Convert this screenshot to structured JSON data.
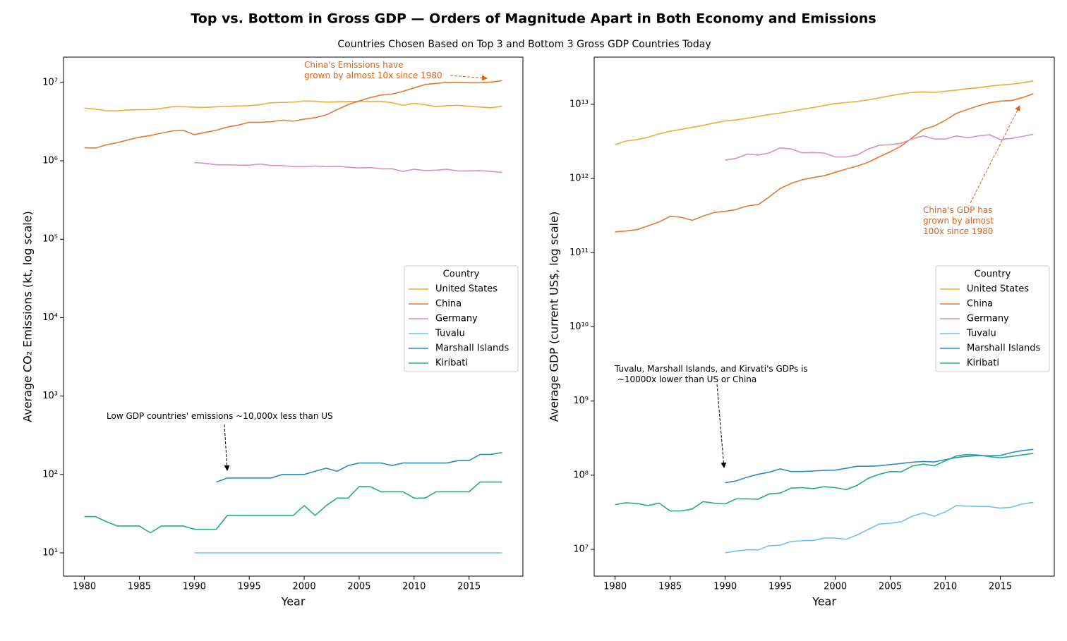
{
  "title": "Top vs. Bottom in Gross GDP — Orders of Magnitude Apart in Both Economy and Emissions",
  "subtitle": "Countries Chosen Based on Top 3 and Bottom 3 Gross GDP Countries Today",
  "chart_data": [
    {
      "type": "line",
      "xlabel": "Year",
      "ylabel": "Average CO₂ Emissions (kt, log scale)",
      "log_scale": true,
      "x": [
        1980,
        1981,
        1982,
        1983,
        1984,
        1985,
        1986,
        1987,
        1988,
        1989,
        1990,
        1991,
        1992,
        1993,
        1994,
        1995,
        1996,
        1997,
        1998,
        1999,
        2000,
        2001,
        2002,
        2003,
        2004,
        2005,
        2006,
        2007,
        2008,
        2009,
        2010,
        2011,
        2012,
        2013,
        2014,
        2015,
        2016,
        2017,
        2018
      ],
      "xlim": [
        1978.1,
        2019.9
      ],
      "xticks": [
        1980,
        1985,
        1990,
        1995,
        2000,
        2005,
        2010,
        2015
      ],
      "ylim": [
        5.05,
        21000000
      ],
      "yticks": [
        {
          "value": 10,
          "label": "10¹"
        },
        {
          "value": 100,
          "label": "10²"
        },
        {
          "value": 1000,
          "label": "10³"
        },
        {
          "value": 10000,
          "label": "10⁴"
        },
        {
          "value": 100000,
          "label": "10⁵"
        },
        {
          "value": 1000000,
          "label": "10⁶"
        },
        {
          "value": 10000000,
          "label": "10⁷"
        }
      ],
      "legend": {
        "title": "Country",
        "loc": "center right"
      },
      "series": [
        {
          "name": "United States",
          "color": "#ebac3d",
          "values": [
            4700000,
            4550000,
            4330000,
            4350000,
            4450000,
            4480000,
            4500000,
            4650000,
            4880000,
            4900000,
            4820000,
            4800000,
            4880000,
            4950000,
            5000000,
            5050000,
            5200000,
            5500000,
            5550000,
            5600000,
            5800000,
            5750000,
            5600000,
            5650000,
            5700000,
            5750000,
            5700000,
            5750000,
            5500000,
            5100000,
            5400000,
            5200000,
            4900000,
            5050000,
            5100000,
            4950000,
            4850000,
            4750000,
            4950000
          ]
        },
        {
          "name": "China",
          "color": "#e07b2e",
          "values": [
            1470000,
            1450000,
            1600000,
            1700000,
            1850000,
            2000000,
            2100000,
            2250000,
            2400000,
            2450000,
            2150000,
            2300000,
            2450000,
            2700000,
            2850000,
            3100000,
            3100000,
            3150000,
            3300000,
            3200000,
            3400000,
            3550000,
            3850000,
            4500000,
            5200000,
            5800000,
            6400000,
            6900000,
            7100000,
            7700000,
            8500000,
            9400000,
            9700000,
            10000000,
            10000000,
            9900000,
            9900000,
            10100000,
            10500000
          ]
        },
        {
          "name": "Germany",
          "color": "#d88fc4",
          "values": [
            null,
            null,
            null,
            null,
            null,
            null,
            null,
            null,
            null,
            null,
            950000,
            930000,
            890000,
            890000,
            880000,
            880000,
            910000,
            870000,
            870000,
            840000,
            840000,
            860000,
            840000,
            850000,
            830000,
            810000,
            820000,
            790000,
            790000,
            730000,
            780000,
            750000,
            760000,
            780000,
            740000,
            745000,
            750000,
            730000,
            710000
          ]
        },
        {
          "name": "Tuvalu",
          "color": "#6ec1f0",
          "values": [
            null,
            null,
            null,
            null,
            null,
            null,
            null,
            null,
            null,
            null,
            10,
            10,
            10,
            10,
            10,
            10,
            10,
            10,
            10,
            10,
            10,
            10,
            10,
            10,
            10,
            10,
            10,
            10,
            10,
            10,
            10,
            10,
            10,
            10,
            10,
            10,
            10,
            10,
            10
          ]
        },
        {
          "name": "Marshall Islands",
          "color": "#2b8cbe",
          "values": [
            null,
            null,
            null,
            null,
            null,
            null,
            null,
            null,
            null,
            null,
            null,
            null,
            80,
            90,
            90,
            90,
            90,
            90,
            100,
            100,
            100,
            110,
            120,
            110,
            130,
            140,
            140,
            140,
            130,
            140,
            140,
            140,
            140,
            140,
            150,
            150,
            180,
            180,
            190
          ]
        },
        {
          "name": "Kiribati",
          "color": "#2aa889",
          "values": [
            29,
            29,
            25,
            22,
            22,
            22,
            18,
            22,
            22,
            22,
            20,
            20,
            20,
            30,
            30,
            30,
            30,
            30,
            30,
            30,
            40,
            30,
            40,
            50,
            50,
            70,
            70,
            60,
            60,
            60,
            50,
            50,
            60,
            60,
            60,
            60,
            80,
            80,
            80
          ]
        }
      ],
      "annotations": [
        {
          "text": "China's Emissions have\ngrown by almost 10x since 1980",
          "color": "#d9631a"
        },
        {
          "text": "Low GDP countries' emissions ~10,000x less than US",
          "color": "#000000"
        }
      ]
    },
    {
      "type": "line",
      "xlabel": "Year",
      "ylabel": "Average GDP (current US$, log scale)",
      "log_scale": true,
      "x": [
        1980,
        1981,
        1982,
        1983,
        1984,
        1985,
        1986,
        1987,
        1988,
        1989,
        1990,
        1991,
        1992,
        1993,
        1994,
        1995,
        1996,
        1997,
        1998,
        1999,
        2000,
        2001,
        2002,
        2003,
        2004,
        2005,
        2006,
        2007,
        2008,
        2009,
        2010,
        2011,
        2012,
        2013,
        2014,
        2015,
        2016,
        2017,
        2018
      ],
      "xlim": [
        1978.1,
        2019.9
      ],
      "xticks": [
        1980,
        1985,
        1990,
        1995,
        2000,
        2005,
        2010,
        2015
      ],
      "ylim": [
        4360000,
        43300000000000
      ],
      "yticks": [
        {
          "value": 10000000,
          "label": "10⁷"
        },
        {
          "value": 100000000,
          "label": "10⁸"
        },
        {
          "value": 1000000000,
          "label": "10⁹"
        },
        {
          "value": 10000000000,
          "label": "10¹⁰"
        },
        {
          "value": 100000000000,
          "label": "10¹¹"
        },
        {
          "value": 1000000000000,
          "label": "10¹²"
        },
        {
          "value": 10000000000000,
          "label": "10¹³"
        }
      ],
      "legend": {
        "title": "Country",
        "loc": "center right"
      },
      "series": [
        {
          "name": "United States",
          "color": "#ebac3d",
          "values": [
            2860000000000,
            3200000000000,
            3350000000000,
            3600000000000,
            4000000000000,
            4340000000000,
            4600000000000,
            4900000000000,
            5200000000000,
            5600000000000,
            5960000000000,
            6160000000000,
            6500000000000,
            6860000000000,
            7290000000000,
            7640000000000,
            8070000000000,
            8580000000000,
            9060000000000,
            9630000000000,
            10250000000000,
            10580000000000,
            10940000000000,
            11460000000000,
            12210000000000,
            13040000000000,
            13810000000000,
            14450000000000,
            14710000000000,
            14450000000000,
            14990000000000,
            15540000000000,
            16200000000000,
            16780000000000,
            17520000000000,
            18220000000000,
            18700000000000,
            19500000000000,
            20600000000000
          ]
        },
        {
          "name": "China",
          "color": "#e07b2e",
          "values": [
            191000000000,
            196000000000,
            205000000000,
            230000000000,
            260000000000,
            309000000000,
            300000000000,
            273000000000,
            312000000000,
            348000000000,
            361000000000,
            383000000000,
            427000000000,
            444000000000,
            564000000000,
            734000000000,
            860000000000,
            960000000000,
            1030000000000,
            1090000000000,
            1210000000000,
            1340000000000,
            1470000000000,
            1660000000000,
            1960000000000,
            2290000000000,
            2750000000000,
            3550000000000,
            4590000000000,
            5100000000000,
            6090000000000,
            7550000000000,
            8530000000000,
            9570000000000,
            10480000000000,
            11060000000000,
            11230000000000,
            12310000000000,
            13890000000000
          ]
        },
        {
          "name": "Germany",
          "color": "#d88fc4",
          "values": [
            null,
            null,
            null,
            null,
            null,
            null,
            null,
            null,
            null,
            null,
            1770000000000,
            1870000000000,
            2130000000000,
            2070000000000,
            2210000000000,
            2590000000000,
            2500000000000,
            2220000000000,
            2240000000000,
            2200000000000,
            1950000000000,
            1950000000000,
            2080000000000,
            2500000000000,
            2810000000000,
            2850000000000,
            2990000000000,
            3430000000000,
            3750000000000,
            3410000000000,
            3400000000000,
            3750000000000,
            3540000000000,
            3750000000000,
            3890000000000,
            3360000000000,
            3470000000000,
            3690000000000,
            3950000000000
          ]
        },
        {
          "name": "Tuvalu",
          "color": "#6ec1f0",
          "values": [
            null,
            null,
            null,
            null,
            null,
            null,
            null,
            null,
            null,
            null,
            9000000,
            9500000,
            9900000,
            9800000,
            11200000,
            11400000,
            12800000,
            13100000,
            13200000,
            14200000,
            14200000,
            13700000,
            15700000,
            18600000,
            22000000,
            22500000,
            23600000,
            28000000,
            31000000,
            28000000,
            32000000,
            39000000,
            38200000,
            38000000,
            37800000,
            36000000,
            37000000,
            41000000,
            43000000
          ]
        },
        {
          "name": "Marshall Islands",
          "color": "#2b8cbe",
          "values": [
            null,
            null,
            null,
            null,
            null,
            null,
            null,
            null,
            null,
            null,
            79000000,
            84000000,
            94000000,
            103000000,
            110000000,
            122000000,
            112000000,
            112000000,
            114000000,
            116000000,
            117000000,
            124000000,
            132000000,
            132000000,
            134000000,
            139000000,
            144000000,
            150000000,
            153000000,
            151000000,
            162000000,
            173000000,
            180000000,
            184000000,
            183000000,
            184000000,
            202000000,
            215000000,
            223000000
          ]
        },
        {
          "name": "Kiribati",
          "color": "#2aa889",
          "values": [
            40000000,
            42500000,
            41500000,
            39000000,
            42000000,
            33000000,
            33000000,
            35000000,
            44000000,
            42000000,
            41000000,
            48000000,
            48000000,
            47500000,
            56000000,
            57500000,
            67000000,
            68000000,
            66000000,
            70000000,
            68000000,
            64000000,
            73000000,
            91000000,
            103000000,
            112000000,
            111000000,
            133000000,
            141000000,
            134000000,
            156000000,
            182000000,
            190000000,
            187000000,
            178000000,
            172000000,
            179000000,
            188000000,
            197000000
          ]
        }
      ],
      "annotations": [
        {
          "text": "China's GDP has\ngrown by almost\n100x since 1980",
          "color": "#d9631a"
        },
        {
          "text": "Tuvalu, Marshall Islands, and Kirvati's GDPs is\n ~10000x lower than US or China",
          "color": "#000000"
        }
      ]
    }
  ]
}
